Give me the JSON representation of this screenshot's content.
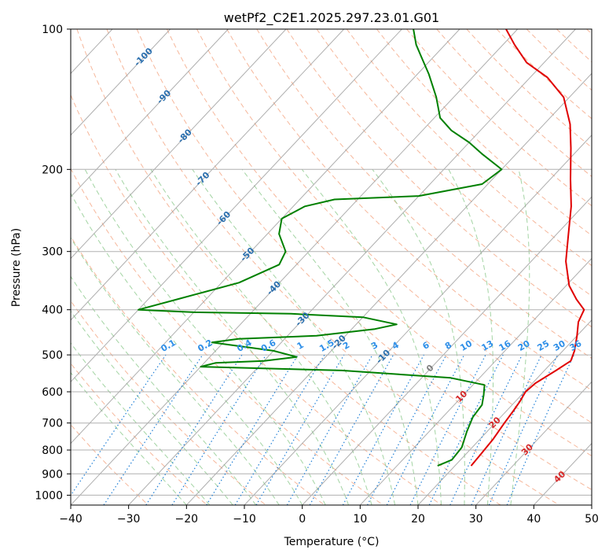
{
  "chart_data": {
    "type": "line",
    "subtype": "skew-t log-p diagram",
    "title": "wetPf2_C2E1.2025.297.23.01.G01",
    "xlabel": "Temperature (°C)",
    "ylabel": "Pressure (hPa)",
    "xlim": [
      -40,
      50
    ],
    "ylim": [
      1050,
      100
    ],
    "y_scale": "log",
    "x_ticks": [
      "−40",
      "−30",
      "−20",
      "−10",
      "0",
      "10",
      "20",
      "30",
      "40",
      "50"
    ],
    "y_ticks": [
      "100",
      "200",
      "300",
      "400",
      "500",
      "600",
      "700",
      "800",
      "900",
      "1000"
    ],
    "grid": true,
    "colors": {
      "temperature": "#e00000",
      "dewpoint": "#008000",
      "dry_adiabat": "#f4a582",
      "moist_adiabat": "#8cc98c",
      "mixing_ratio": "#1f7fd6",
      "isotherm": "#808080",
      "isotherm_label_cold": "#2b6fae",
      "isotherm_label_warm": "#d62728"
    },
    "series": [
      {
        "name": "",
        "role": "temperature",
        "points": [
          {
            "x": 22.8,
            "y": 865
          },
          {
            "x": 22.6,
            "y": 820
          },
          {
            "x": 22.3,
            "y": 760
          },
          {
            "x": 21.6,
            "y": 700
          },
          {
            "x": 21.2,
            "y": 660
          },
          {
            "x": 20.8,
            "y": 630
          },
          {
            "x": 20.2,
            "y": 600
          },
          {
            "x": 20.5,
            "y": 575
          },
          {
            "x": 22.0,
            "y": 540
          },
          {
            "x": 23.0,
            "y": 515
          },
          {
            "x": 22.0,
            "y": 490
          },
          {
            "x": 20.0,
            "y": 455
          },
          {
            "x": 18.0,
            "y": 425
          },
          {
            "x": 17.0,
            "y": 400
          },
          {
            "x": 14.0,
            "y": 380
          },
          {
            "x": 10.5,
            "y": 355
          },
          {
            "x": 6.0,
            "y": 315
          },
          {
            "x": 2.0,
            "y": 275
          },
          {
            "x": -2.0,
            "y": 240
          },
          {
            "x": -6.5,
            "y": 210
          },
          {
            "x": -11.5,
            "y": 180
          },
          {
            "x": -15.5,
            "y": 160
          },
          {
            "x": -21.0,
            "y": 140
          },
          {
            "x": -27.0,
            "y": 127
          },
          {
            "x": -33.0,
            "y": 118
          },
          {
            "x": -38.0,
            "y": 108
          },
          {
            "x": -42.0,
            "y": 100
          }
        ]
      },
      {
        "name": "",
        "role": "dewpoint",
        "points": [
          {
            "x": 17.0,
            "y": 865
          },
          {
            "x": 18.5,
            "y": 840
          },
          {
            "x": 18.2,
            "y": 790
          },
          {
            "x": 16.5,
            "y": 730
          },
          {
            "x": 15.2,
            "y": 680
          },
          {
            "x": 14.8,
            "y": 640
          },
          {
            "x": 13.5,
            "y": 610
          },
          {
            "x": 12.0,
            "y": 580
          },
          {
            "x": 5.0,
            "y": 560
          },
          {
            "x": -15.0,
            "y": 540
          },
          {
            "x": -40.0,
            "y": 530
          },
          {
            "x": -38.0,
            "y": 520
          },
          {
            "x": -30.0,
            "y": 515
          },
          {
            "x": -25.0,
            "y": 505
          },
          {
            "x": -30.0,
            "y": 490
          },
          {
            "x": -42.0,
            "y": 470
          },
          {
            "x": -38.0,
            "y": 462
          },
          {
            "x": -25.0,
            "y": 455
          },
          {
            "x": -16.0,
            "y": 440
          },
          {
            "x": -13.0,
            "y": 430
          },
          {
            "x": -20.0,
            "y": 415
          },
          {
            "x": -33.0,
            "y": 408
          },
          {
            "x": -50.0,
            "y": 405
          },
          {
            "x": -60.0,
            "y": 400
          },
          {
            "x": -55.0,
            "y": 380
          },
          {
            "x": -47.0,
            "y": 350
          },
          {
            "x": -43.0,
            "y": 320
          },
          {
            "x": -44.0,
            "y": 300
          },
          {
            "x": -48.0,
            "y": 275
          },
          {
            "x": -50.0,
            "y": 255
          },
          {
            "x": -48.0,
            "y": 240
          },
          {
            "x": -44.0,
            "y": 232
          },
          {
            "x": -30.0,
            "y": 228
          },
          {
            "x": -21.0,
            "y": 215
          },
          {
            "x": -20.0,
            "y": 200
          },
          {
            "x": -26.0,
            "y": 185
          },
          {
            "x": -30.0,
            "y": 175
          },
          {
            "x": -35.0,
            "y": 165
          },
          {
            "x": -39.0,
            "y": 155
          },
          {
            "x": -43.0,
            "y": 140
          },
          {
            "x": -48.0,
            "y": 125
          },
          {
            "x": -52.0,
            "y": 115
          },
          {
            "x": -55.0,
            "y": 108
          },
          {
            "x": -58.0,
            "y": 100
          }
        ]
      }
    ],
    "isotherm_labels": [
      "-100",
      "-90",
      "-80",
      "-70",
      "-60",
      "-50",
      "-40",
      "-30",
      "-20",
      "-10",
      "0",
      "10",
      "20",
      "30",
      "40"
    ],
    "mixing_ratio_labels": [
      "0.1",
      "0.2",
      "0.4",
      "0.6",
      "1",
      "1.5",
      "2",
      "3",
      "4",
      "6",
      "8",
      "10",
      "13",
      "16",
      "20",
      "25",
      "30",
      "36"
    ]
  }
}
